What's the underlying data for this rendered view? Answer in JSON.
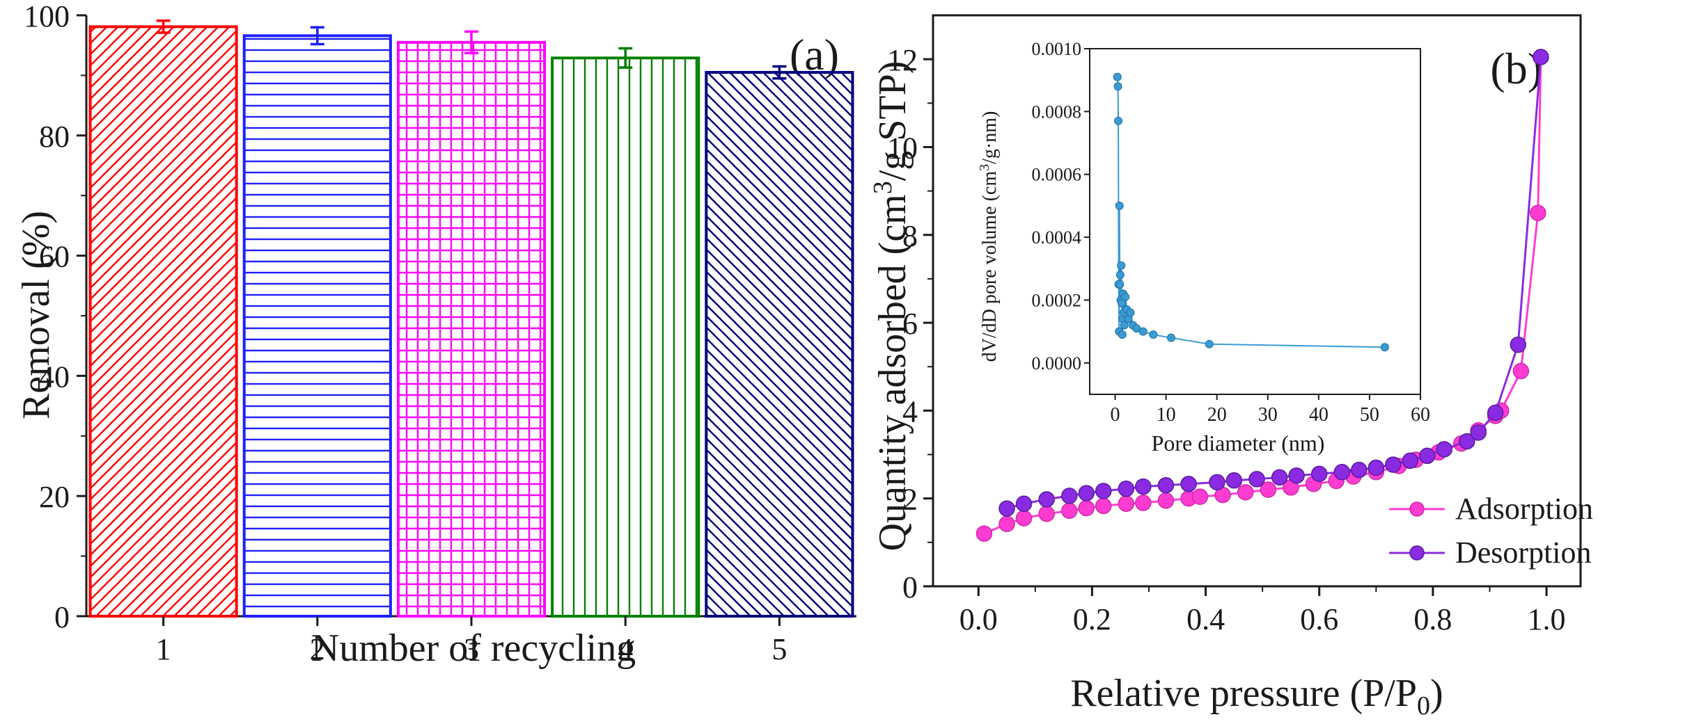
{
  "chart_data": [
    {
      "panel": "(a)",
      "type": "bar",
      "xlabel": "Number of recycling",
      "ylabel": "Removal (%)",
      "ylim": [
        0,
        100
      ],
      "yticks": [
        0,
        20,
        40,
        60,
        80,
        100
      ],
      "categories": [
        "1",
        "2",
        "3",
        "4",
        "5"
      ],
      "values": [
        98.1,
        96.6,
        95.5,
        92.9,
        90.5
      ],
      "errors": [
        1.0,
        1.4,
        1.8,
        1.6,
        1.0
      ],
      "colors": [
        "#ff0000",
        "#1f1fff",
        "#ff00ff",
        "#008000",
        "#000080"
      ],
      "patterns": [
        "diag-right",
        "horizontal",
        "grid",
        "vertical",
        "diag-left"
      ],
      "grid": false
    },
    {
      "panel": "(b)",
      "type": "line",
      "xlabel": "Relative pressure (P/P",
      "xlabel_sub": "0",
      "xlabel_end": ")",
      "ylabel": "Quantity adsorbed (cm",
      "ylabel_sup": "3",
      "ylabel_end": "/g STP)",
      "xlim": [
        -0.08,
        1.06
      ],
      "ylim": [
        0,
        13
      ],
      "xticks": [
        0.0,
        0.2,
        0.4,
        0.6,
        0.8,
        1.0
      ],
      "yticks": [
        0,
        2,
        4,
        6,
        8,
        10,
        12
      ],
      "legend_position": "bottom-right",
      "grid": false,
      "series": [
        {
          "name": "Adsorption",
          "color": "#ff3cd2",
          "x": [
            0.01,
            0.05,
            0.08,
            0.12,
            0.16,
            0.19,
            0.22,
            0.26,
            0.29,
            0.33,
            0.37,
            0.39,
            0.43,
            0.47,
            0.51,
            0.55,
            0.59,
            0.63,
            0.66,
            0.7,
            0.74,
            0.77,
            0.81,
            0.85,
            0.88,
            0.91,
            0.92,
            0.955,
            0.985,
            0.99
          ],
          "y": [
            1.2,
            1.42,
            1.55,
            1.65,
            1.72,
            1.78,
            1.83,
            1.88,
            1.9,
            1.95,
            2.0,
            2.04,
            2.08,
            2.14,
            2.2,
            2.25,
            2.33,
            2.4,
            2.5,
            2.6,
            2.74,
            2.88,
            3.05,
            3.25,
            3.55,
            3.88,
            4.0,
            4.9,
            8.5,
            12.05
          ]
        },
        {
          "name": "Desorption",
          "color": "#8a2be2",
          "x": [
            0.05,
            0.08,
            0.12,
            0.16,
            0.19,
            0.22,
            0.26,
            0.29,
            0.33,
            0.37,
            0.42,
            0.45,
            0.49,
            0.53,
            0.56,
            0.6,
            0.64,
            0.67,
            0.7,
            0.73,
            0.76,
            0.79,
            0.82,
            0.86,
            0.88,
            0.91,
            0.95,
            0.99
          ],
          "y": [
            1.77,
            1.88,
            1.98,
            2.06,
            2.12,
            2.17,
            2.22,
            2.27,
            2.3,
            2.33,
            2.37,
            2.41,
            2.44,
            2.48,
            2.52,
            2.56,
            2.6,
            2.65,
            2.7,
            2.77,
            2.86,
            2.97,
            3.12,
            3.3,
            3.5,
            3.95,
            5.5,
            12.05
          ]
        }
      ],
      "inset": {
        "type": "scatter",
        "xlabel": "Pore diameter (nm)",
        "ylabel": "dV/dD pore volume (cm",
        "ylabel_sup": "3",
        "ylabel_end": "/g·nm)",
        "xlim": [
          -5,
          60
        ],
        "ylim": [
          -0.0001,
          0.001
        ],
        "xticks": [
          0,
          10,
          20,
          30,
          40,
          50,
          60
        ],
        "yticks_labels": [
          "0.0000",
          "0.0002",
          "0.0004",
          "0.0006",
          "0.0008",
          "0.0010"
        ],
        "yticks": [
          0,
          0.0002,
          0.0004,
          0.0006,
          0.0008,
          0.001
        ],
        "color": "#3a9bd5",
        "x": [
          0.45,
          0.55,
          0.62,
          0.7,
          0.78,
          0.85,
          0.92,
          1.0,
          1.1,
          1.2,
          1.3,
          1.4,
          1.5,
          1.6,
          1.7,
          1.8,
          2.0,
          2.3,
          2.6,
          3.0,
          3.5,
          4.2,
          5.5,
          7.5,
          11,
          18.5,
          53
        ],
        "y": [
          0.00091,
          0.00088,
          0.00077,
          0.00025,
          0.0001,
          0.0005,
          0.00025,
          0.00028,
          0.0002,
          0.00031,
          0.00019,
          9e-05,
          0.00014,
          0.00022,
          0.00016,
          0.00012,
          0.00021,
          0.00017,
          0.00014,
          0.00016,
          0.00012,
          0.00011,
          0.0001,
          9e-05,
          8e-05,
          6e-05,
          5e-05
        ]
      }
    }
  ]
}
